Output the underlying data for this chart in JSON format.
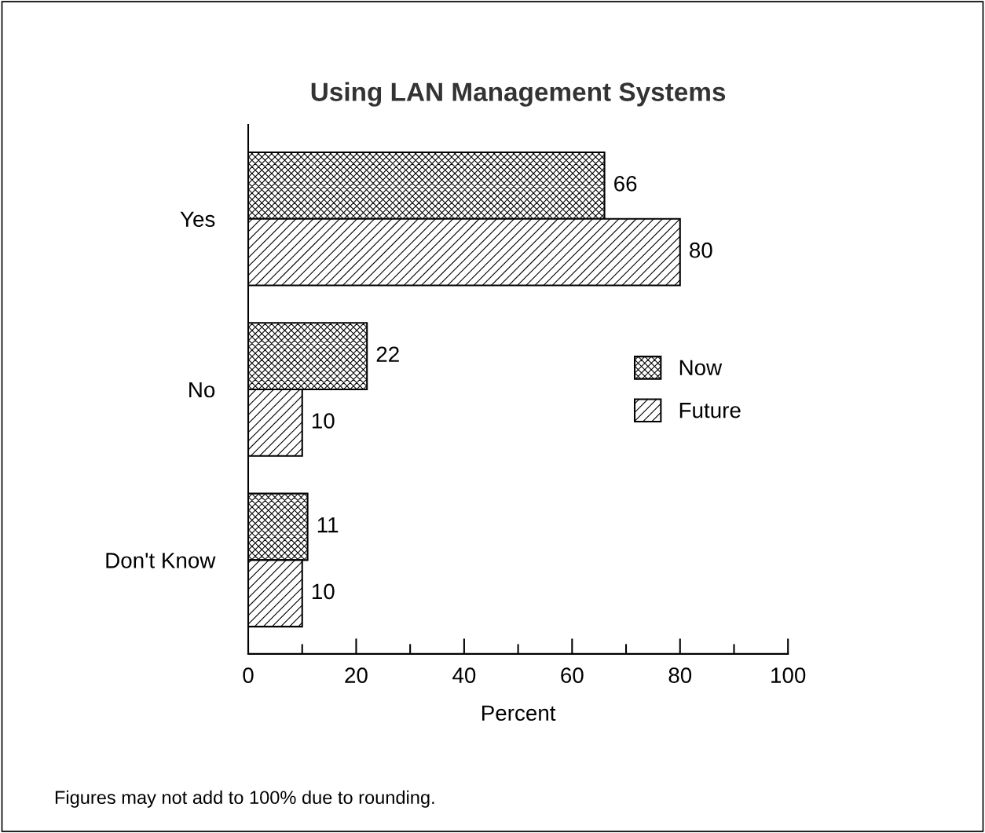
{
  "chart_data": {
    "type": "bar",
    "orientation": "horizontal",
    "title": "Using LAN Management Systems",
    "xlabel": "Percent",
    "categories": [
      "Yes",
      "No",
      "Don't Know"
    ],
    "series": [
      {
        "name": "Now",
        "color": "#000000",
        "values": [
          66,
          22,
          11
        ]
      },
      {
        "name": "Future",
        "color": "#000000",
        "values": [
          80,
          10,
          10
        ]
      }
    ],
    "xlim": [
      0,
      100
    ],
    "xticks": [
      0,
      {
        "value": 10,
        "label": null
      },
      20,
      {
        "value": 30,
        "label": null
      },
      40,
      {
        "value": 50,
        "label": null
      },
      60,
      {
        "value": 70,
        "label": null
      },
      80,
      {
        "value": 90,
        "label": null
      },
      100
    ],
    "data_labels": true,
    "grid": false,
    "legend": "right",
    "annotations": [
      "Figures may not add to 100% due to rounding."
    ]
  }
}
